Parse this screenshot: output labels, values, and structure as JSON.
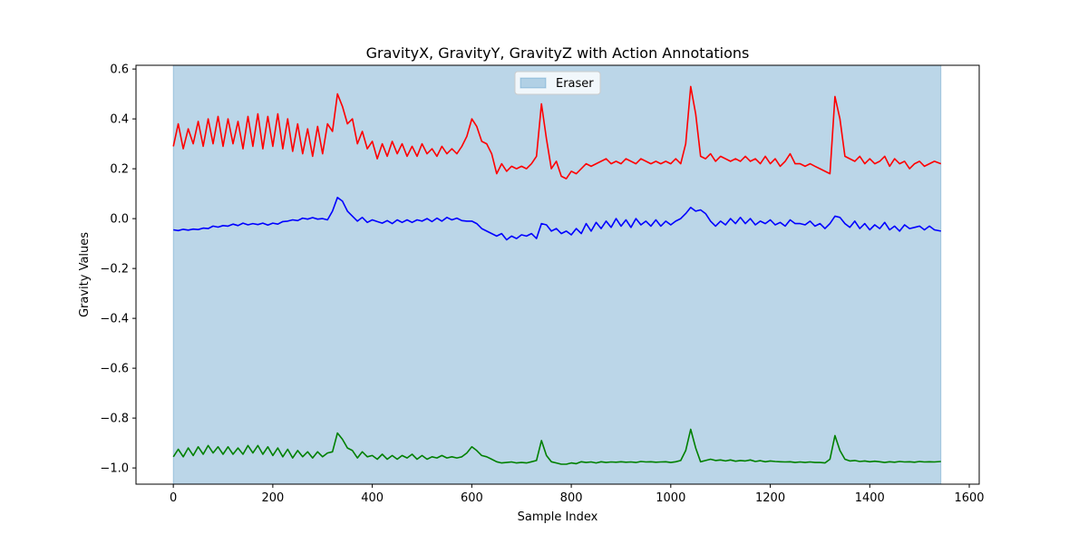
{
  "chart_data": {
    "type": "line",
    "title": "GravityX, GravityY, GravityZ with Action Annotations",
    "xlabel": "Sample Index",
    "ylabel": "Gravity Values",
    "xlim": [
      -75,
      1620
    ],
    "ylim": [
      -1.065,
      0.615
    ],
    "xticks": [
      0,
      200,
      400,
      600,
      800,
      1000,
      1200,
      1400,
      1600
    ],
    "yticks": [
      0.6,
      0.4,
      0.2,
      0.0,
      -0.2,
      -0.4,
      -0.6,
      -0.8,
      -1.0
    ],
    "xtick_labels": [
      "0",
      "200",
      "400",
      "600",
      "800",
      "1000",
      "1200",
      "1400",
      "1600"
    ],
    "ytick_labels": [
      "0.6",
      "0.4",
      "0.2",
      "0.0",
      "−0.2",
      "−0.4",
      "−0.6",
      "−0.8",
      "−1.0"
    ],
    "grid": false,
    "legend": {
      "position": "top-center",
      "entries": [
        "Eraser"
      ]
    },
    "annotations": [
      {
        "label": "Eraser",
        "x_start": 0,
        "x_end": 1543,
        "color": "#1f77b4",
        "alpha": 0.3
      }
    ],
    "series": [
      {
        "color": "#ff0000",
        "x": [
          0,
          10,
          20,
          30,
          40,
          50,
          60,
          70,
          80,
          90,
          100,
          110,
          120,
          130,
          140,
          150,
          160,
          170,
          180,
          190,
          200,
          210,
          220,
          230,
          240,
          250,
          260,
          270,
          280,
          290,
          300,
          310,
          320,
          330,
          340,
          350,
          360,
          370,
          380,
          390,
          400,
          410,
          420,
          430,
          440,
          450,
          460,
          470,
          480,
          490,
          500,
          510,
          520,
          530,
          540,
          550,
          560,
          570,
          580,
          590,
          600,
          610,
          620,
          630,
          640,
          650,
          660,
          670,
          680,
          690,
          700,
          710,
          720,
          730,
          740,
          750,
          760,
          770,
          780,
          790,
          800,
          810,
          820,
          830,
          840,
          850,
          860,
          870,
          880,
          890,
          900,
          910,
          920,
          930,
          940,
          950,
          960,
          970,
          980,
          990,
          1000,
          1010,
          1020,
          1030,
          1040,
          1050,
          1060,
          1070,
          1080,
          1090,
          1100,
          1110,
          1120,
          1130,
          1140,
          1150,
          1160,
          1170,
          1180,
          1190,
          1200,
          1210,
          1220,
          1230,
          1240,
          1250,
          1260,
          1270,
          1280,
          1290,
          1300,
          1310,
          1320,
          1330,
          1340,
          1350,
          1360,
          1370,
          1380,
          1390,
          1400,
          1410,
          1420,
          1430,
          1440,
          1450,
          1460,
          1470,
          1480,
          1490,
          1500,
          1510,
          1520,
          1530,
          1543
        ],
        "values": [
          0.29,
          0.38,
          0.28,
          0.36,
          0.3,
          0.39,
          0.29,
          0.4,
          0.3,
          0.41,
          0.29,
          0.4,
          0.3,
          0.39,
          0.28,
          0.41,
          0.29,
          0.42,
          0.28,
          0.41,
          0.29,
          0.42,
          0.28,
          0.4,
          0.27,
          0.38,
          0.26,
          0.36,
          0.25,
          0.37,
          0.26,
          0.38,
          0.35,
          0.5,
          0.45,
          0.38,
          0.4,
          0.3,
          0.35,
          0.28,
          0.31,
          0.24,
          0.3,
          0.25,
          0.31,
          0.26,
          0.3,
          0.25,
          0.29,
          0.25,
          0.3,
          0.26,
          0.28,
          0.25,
          0.29,
          0.26,
          0.28,
          0.26,
          0.29,
          0.33,
          0.4,
          0.37,
          0.31,
          0.3,
          0.26,
          0.18,
          0.22,
          0.19,
          0.21,
          0.2,
          0.21,
          0.2,
          0.22,
          0.25,
          0.46,
          0.32,
          0.2,
          0.23,
          0.17,
          0.16,
          0.19,
          0.18,
          0.2,
          0.22,
          0.21,
          0.22,
          0.23,
          0.24,
          0.22,
          0.23,
          0.22,
          0.24,
          0.23,
          0.22,
          0.24,
          0.23,
          0.22,
          0.23,
          0.22,
          0.23,
          0.22,
          0.24,
          0.22,
          0.3,
          0.53,
          0.42,
          0.25,
          0.24,
          0.26,
          0.23,
          0.25,
          0.24,
          0.23,
          0.24,
          0.23,
          0.25,
          0.23,
          0.24,
          0.22,
          0.25,
          0.22,
          0.24,
          0.21,
          0.23,
          0.26,
          0.22,
          0.22,
          0.21,
          0.22,
          0.21,
          0.2,
          0.19,
          0.18,
          0.49,
          0.4,
          0.25,
          0.24,
          0.23,
          0.25,
          0.22,
          0.24,
          0.22,
          0.23,
          0.25,
          0.21,
          0.24,
          0.22,
          0.23,
          0.2,
          0.22,
          0.23,
          0.21,
          0.22,
          0.23,
          0.22
        ]
      },
      {
        "color": "#0000ff",
        "x": [
          0,
          10,
          20,
          30,
          40,
          50,
          60,
          70,
          80,
          90,
          100,
          110,
          120,
          130,
          140,
          150,
          160,
          170,
          180,
          190,
          200,
          210,
          220,
          230,
          240,
          250,
          260,
          270,
          280,
          290,
          300,
          310,
          320,
          330,
          340,
          350,
          360,
          370,
          380,
          390,
          400,
          410,
          420,
          430,
          440,
          450,
          460,
          470,
          480,
          490,
          500,
          510,
          520,
          530,
          540,
          550,
          560,
          570,
          580,
          590,
          600,
          610,
          620,
          630,
          640,
          650,
          660,
          670,
          680,
          690,
          700,
          710,
          720,
          730,
          740,
          750,
          760,
          770,
          780,
          790,
          800,
          810,
          820,
          830,
          840,
          850,
          860,
          870,
          880,
          890,
          900,
          910,
          920,
          930,
          940,
          950,
          960,
          970,
          980,
          990,
          1000,
          1010,
          1020,
          1030,
          1040,
          1050,
          1060,
          1070,
          1080,
          1090,
          1100,
          1110,
          1120,
          1130,
          1140,
          1150,
          1160,
          1170,
          1180,
          1190,
          1200,
          1210,
          1220,
          1230,
          1240,
          1250,
          1260,
          1270,
          1280,
          1290,
          1300,
          1310,
          1320,
          1330,
          1340,
          1350,
          1360,
          1370,
          1380,
          1390,
          1400,
          1410,
          1420,
          1430,
          1440,
          1450,
          1460,
          1470,
          1480,
          1490,
          1500,
          1510,
          1520,
          1530,
          1543
        ],
        "values": [
          -0.045,
          -0.048,
          -0.043,
          -0.046,
          -0.042,
          -0.044,
          -0.038,
          -0.04,
          -0.03,
          -0.034,
          -0.028,
          -0.03,
          -0.022,
          -0.028,
          -0.018,
          -0.025,
          -0.02,
          -0.024,
          -0.018,
          -0.026,
          -0.018,
          -0.022,
          -0.012,
          -0.01,
          -0.005,
          -0.008,
          0.002,
          -0.002,
          0.004,
          -0.002,
          0.0,
          -0.005,
          0.03,
          0.085,
          0.07,
          0.03,
          0.01,
          -0.01,
          0.005,
          -0.015,
          -0.005,
          -0.012,
          -0.018,
          -0.008,
          -0.02,
          -0.005,
          -0.015,
          -0.005,
          -0.015,
          -0.005,
          -0.01,
          0.0,
          -0.012,
          0.002,
          -0.01,
          0.005,
          -0.005,
          0.002,
          -0.008,
          -0.01,
          -0.01,
          -0.02,
          -0.04,
          -0.05,
          -0.06,
          -0.07,
          -0.06,
          -0.085,
          -0.07,
          -0.08,
          -0.065,
          -0.07,
          -0.06,
          -0.08,
          -0.02,
          -0.025,
          -0.05,
          -0.04,
          -0.06,
          -0.05,
          -0.065,
          -0.04,
          -0.06,
          -0.02,
          -0.05,
          -0.015,
          -0.04,
          -0.01,
          -0.035,
          0.0,
          -0.03,
          -0.005,
          -0.035,
          0.0,
          -0.025,
          -0.01,
          -0.03,
          -0.005,
          -0.03,
          -0.01,
          -0.025,
          -0.01,
          0.0,
          0.02,
          0.045,
          0.03,
          0.035,
          0.02,
          -0.01,
          -0.03,
          -0.01,
          -0.025,
          0.0,
          -0.02,
          0.005,
          -0.02,
          0.0,
          -0.025,
          -0.01,
          -0.02,
          -0.005,
          -0.025,
          -0.015,
          -0.03,
          -0.005,
          -0.02,
          -0.02,
          -0.025,
          -0.01,
          -0.03,
          -0.02,
          -0.04,
          -0.02,
          0.01,
          0.005,
          -0.02,
          -0.035,
          -0.01,
          -0.04,
          -0.02,
          -0.045,
          -0.025,
          -0.04,
          -0.015,
          -0.045,
          -0.03,
          -0.05,
          -0.025,
          -0.04,
          -0.035,
          -0.03,
          -0.045,
          -0.03,
          -0.045,
          -0.05
        ]
      },
      {
        "color": "#008000",
        "x": [
          0,
          10,
          20,
          30,
          40,
          50,
          60,
          70,
          80,
          90,
          100,
          110,
          120,
          130,
          140,
          150,
          160,
          170,
          180,
          190,
          200,
          210,
          220,
          230,
          240,
          250,
          260,
          270,
          280,
          290,
          300,
          310,
          320,
          330,
          340,
          350,
          360,
          370,
          380,
          390,
          400,
          410,
          420,
          430,
          440,
          450,
          460,
          470,
          480,
          490,
          500,
          510,
          520,
          530,
          540,
          550,
          560,
          570,
          580,
          590,
          600,
          610,
          620,
          630,
          640,
          650,
          660,
          670,
          680,
          690,
          700,
          710,
          720,
          730,
          740,
          750,
          760,
          770,
          780,
          790,
          800,
          810,
          820,
          830,
          840,
          850,
          860,
          870,
          880,
          890,
          900,
          910,
          920,
          930,
          940,
          950,
          960,
          970,
          980,
          990,
          1000,
          1010,
          1020,
          1030,
          1040,
          1050,
          1060,
          1070,
          1080,
          1090,
          1100,
          1110,
          1120,
          1130,
          1140,
          1150,
          1160,
          1170,
          1180,
          1190,
          1200,
          1210,
          1220,
          1230,
          1240,
          1250,
          1260,
          1270,
          1280,
          1290,
          1300,
          1310,
          1320,
          1330,
          1340,
          1350,
          1360,
          1370,
          1380,
          1390,
          1400,
          1410,
          1420,
          1430,
          1440,
          1450,
          1460,
          1470,
          1480,
          1490,
          1500,
          1510,
          1520,
          1530,
          1543
        ],
        "values": [
          -0.955,
          -0.925,
          -0.955,
          -0.92,
          -0.95,
          -0.915,
          -0.945,
          -0.91,
          -0.94,
          -0.915,
          -0.945,
          -0.915,
          -0.945,
          -0.92,
          -0.945,
          -0.91,
          -0.94,
          -0.91,
          -0.945,
          -0.915,
          -0.95,
          -0.92,
          -0.955,
          -0.925,
          -0.96,
          -0.93,
          -0.955,
          -0.935,
          -0.96,
          -0.935,
          -0.955,
          -0.94,
          -0.935,
          -0.86,
          -0.885,
          -0.92,
          -0.93,
          -0.96,
          -0.935,
          -0.955,
          -0.95,
          -0.965,
          -0.945,
          -0.965,
          -0.95,
          -0.965,
          -0.95,
          -0.96,
          -0.945,
          -0.965,
          -0.95,
          -0.965,
          -0.955,
          -0.96,
          -0.95,
          -0.96,
          -0.955,
          -0.96,
          -0.955,
          -0.94,
          -0.915,
          -0.93,
          -0.95,
          -0.955,
          -0.965,
          -0.975,
          -0.98,
          -0.978,
          -0.976,
          -0.98,
          -0.978,
          -0.98,
          -0.975,
          -0.97,
          -0.89,
          -0.95,
          -0.975,
          -0.98,
          -0.985,
          -0.985,
          -0.98,
          -0.983,
          -0.975,
          -0.978,
          -0.976,
          -0.98,
          -0.975,
          -0.978,
          -0.976,
          -0.977,
          -0.975,
          -0.977,
          -0.976,
          -0.978,
          -0.974,
          -0.976,
          -0.975,
          -0.977,
          -0.976,
          -0.975,
          -0.978,
          -0.975,
          -0.97,
          -0.93,
          -0.845,
          -0.92,
          -0.975,
          -0.97,
          -0.965,
          -0.97,
          -0.968,
          -0.972,
          -0.968,
          -0.973,
          -0.97,
          -0.972,
          -0.968,
          -0.974,
          -0.971,
          -0.975,
          -0.972,
          -0.974,
          -0.975,
          -0.976,
          -0.975,
          -0.978,
          -0.976,
          -0.978,
          -0.976,
          -0.978,
          -0.978,
          -0.98,
          -0.965,
          -0.87,
          -0.93,
          -0.965,
          -0.972,
          -0.97,
          -0.974,
          -0.972,
          -0.975,
          -0.973,
          -0.975,
          -0.978,
          -0.975,
          -0.977,
          -0.974,
          -0.976,
          -0.975,
          -0.977,
          -0.974,
          -0.976,
          -0.975,
          -0.976,
          -0.974
        ]
      }
    ]
  }
}
